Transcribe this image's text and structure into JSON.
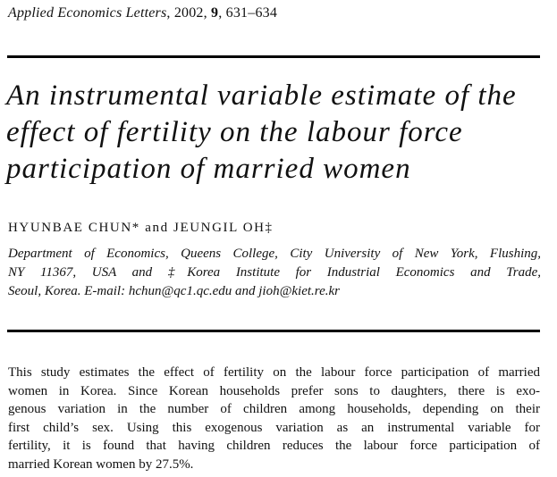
{
  "journal": {
    "name": "Applied Economics Letters",
    "separator1": ", 2002, ",
    "volume": "9",
    "separator2": ", ",
    "pages": "631–634"
  },
  "title_lines": [
    "An instrumental variable estimate of the",
    "effect of fertility on the labour force",
    "participation of married women"
  ],
  "authors": "HYUNBAE CHUN* and JEUNGIL OH‡",
  "affiliation_lines": [
    "Department of Economics, Queens College, City University of New York, Flushing,",
    "NY 11367, USA and ‡Korea Institute for Industrial Economics and Trade,",
    "Seoul, Korea. E-mail: hchun@qc1.qc.edu and jioh@kiet.re.kr"
  ],
  "abstract_lines": [
    "This study estimates the effect of fertility on the labour force participation of married",
    "women in Korea. Since Korean households prefer sons to daughters, there is exo-",
    "genous variation in the number of children among households, depending on their",
    "first child’s sex. Using this exogenous variation as an instrumental variable for",
    "fertility, it is found that having children reduces the labour force participation of",
    "married Korean women by 27.5%."
  ]
}
